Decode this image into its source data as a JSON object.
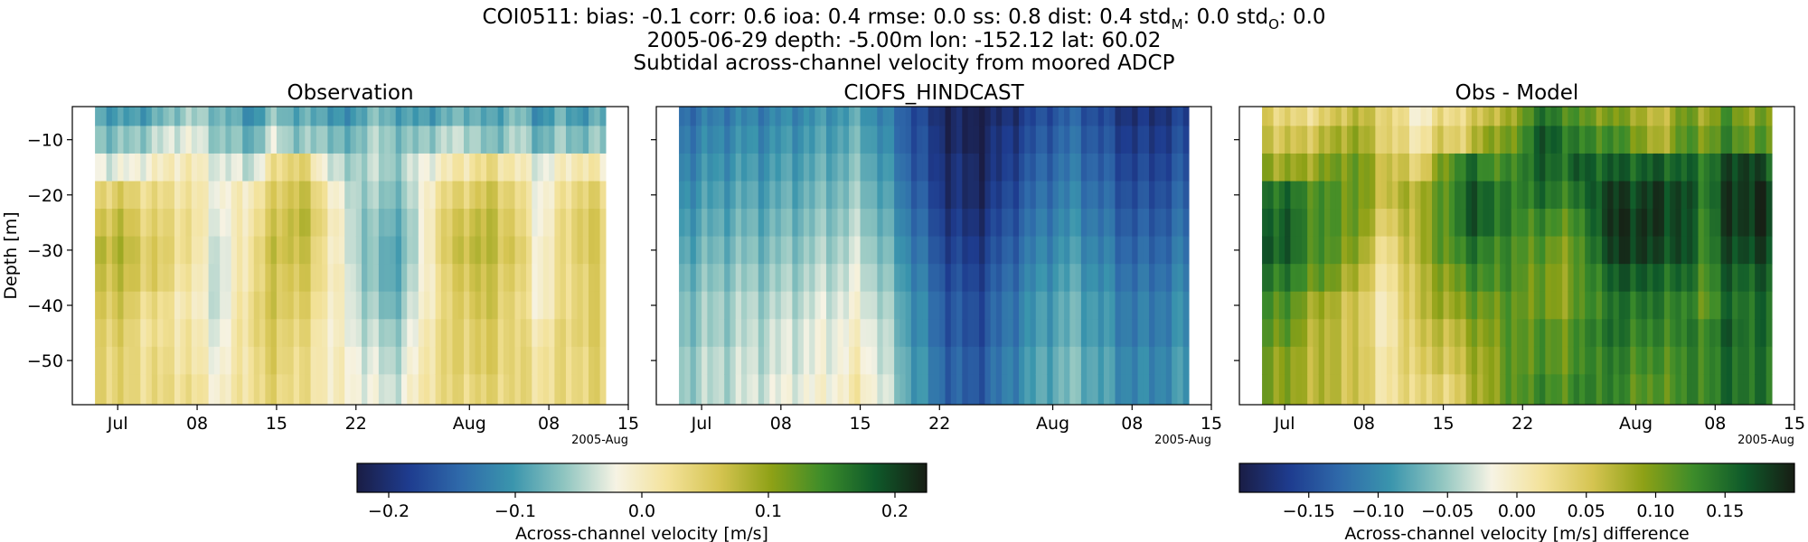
{
  "suptitle": {
    "line1_prefix": "COI0511: bias: -0.1  corr: 0.6  ioa: 0.4  rmse: 0.0  ss: 0.8  dist: 0.4  std",
    "line1_sub_m": "M",
    "line1_mid": ": 0.0  std",
    "line1_sub_o": "O",
    "line1_end": ": 0.0",
    "line2": "2005-06-29 depth: -5.00m lon: -152.12 lat: 60.02",
    "line3": "Subtidal across-channel velocity from moored ADCP"
  },
  "colors": {
    "colormap": [
      "#1a1d45",
      "#1e3c8f",
      "#2f6aaa",
      "#3a95ad",
      "#8fc5c0",
      "#f6f3e4",
      "#f3e29a",
      "#d5c451",
      "#8ea116",
      "#3c8c2a",
      "#0f5a2a",
      "#171d14"
    ],
    "axis": "#000000",
    "background": "#ffffff"
  },
  "chart_data": [
    {
      "type": "heatmap",
      "title": "Observation",
      "xlabel": "",
      "ylabel": "Depth [m]",
      "x_range": [
        "2005-06-29",
        "2005-08-13"
      ],
      "xlim": [
        "2005-06-27",
        "2005-08-15"
      ],
      "ylim": [
        -58,
        -4
      ],
      "y_ticks": [
        -10,
        -20,
        -30,
        -40,
        -50
      ],
      "x_ticks": [
        "Jul",
        "08",
        "15",
        "22",
        "Aug",
        "08",
        "15"
      ],
      "x_tick_dates": [
        "2005-07-01",
        "2005-07-08",
        "2005-07-15",
        "2005-07-22",
        "2005-08-01",
        "2005-08-08",
        "2005-08-15"
      ],
      "x_offset_label": "2005-Aug",
      "value_range": [
        -0.225,
        0.225
      ],
      "profile_days": [
        "2005-06-29",
        "2005-07-01",
        "2005-07-04",
        "2005-07-07",
        "2005-07-10",
        "2005-07-13",
        "2005-07-15",
        "2005-07-17",
        "2005-07-19",
        "2005-07-21",
        "2005-07-23",
        "2005-07-25",
        "2005-07-27",
        "2005-07-29",
        "2005-08-01",
        "2005-08-03",
        "2005-08-05",
        "2005-08-07",
        "2005-08-09",
        "2005-08-11",
        "2005-08-13"
      ],
      "profile_depths": [
        -5,
        -10,
        -15,
        -20,
        -25,
        -30,
        -35,
        -40,
        -45,
        -50,
        -55
      ],
      "values": [
        [
          -0.08,
          -0.1,
          -0.09,
          -0.05,
          -0.07,
          -0.11,
          -0.06,
          -0.09,
          -0.08,
          -0.12,
          -0.07,
          -0.08,
          -0.1,
          -0.09,
          -0.07,
          -0.1,
          -0.06,
          -0.11,
          -0.08,
          -0.1,
          -0.08
        ],
        [
          -0.06,
          -0.07,
          -0.05,
          -0.02,
          -0.06,
          -0.08,
          -0.03,
          -0.07,
          -0.05,
          -0.09,
          -0.05,
          -0.06,
          -0.07,
          -0.05,
          -0.04,
          -0.08,
          -0.04,
          -0.08,
          -0.06,
          -0.07,
          -0.06
        ],
        [
          -0.02,
          -0.03,
          -0.01,
          0.01,
          -0.03,
          -0.04,
          0.03,
          0.05,
          -0.01,
          -0.06,
          -0.04,
          -0.06,
          -0.04,
          -0.01,
          0.02,
          0.03,
          0.01,
          -0.03,
          -0.01,
          0.02,
          -0.01
        ],
        [
          0.04,
          0.05,
          0.03,
          0.02,
          -0.02,
          0.01,
          0.05,
          0.07,
          0.03,
          -0.04,
          -0.05,
          -0.07,
          -0.05,
          0.02,
          0.05,
          0.06,
          0.04,
          -0.02,
          0.01,
          0.05,
          0.03
        ],
        [
          0.06,
          0.07,
          0.04,
          0.03,
          -0.03,
          0.02,
          0.06,
          0.08,
          0.04,
          -0.03,
          -0.06,
          -0.08,
          -0.06,
          0.03,
          0.07,
          0.07,
          0.05,
          -0.02,
          0.02,
          0.06,
          0.04
        ],
        [
          0.08,
          0.08,
          0.05,
          0.03,
          -0.04,
          0.03,
          0.07,
          0.07,
          0.03,
          -0.03,
          -0.06,
          -0.09,
          -0.06,
          0.03,
          0.08,
          0.07,
          0.06,
          -0.01,
          0.02,
          0.06,
          0.04
        ],
        [
          0.07,
          0.07,
          0.05,
          0.02,
          -0.04,
          0.03,
          0.06,
          0.06,
          0.03,
          -0.02,
          -0.06,
          -0.09,
          -0.05,
          0.02,
          0.07,
          0.06,
          0.05,
          -0.01,
          0.02,
          0.05,
          0.04
        ],
        [
          0.06,
          0.06,
          0.03,
          0.01,
          -0.04,
          0.04,
          0.06,
          0.05,
          0.02,
          -0.02,
          -0.05,
          -0.08,
          -0.04,
          0.02,
          0.06,
          0.06,
          0.04,
          -0.01,
          0.02,
          0.05,
          0.04
        ],
        [
          0.05,
          0.05,
          0.02,
          0.02,
          -0.03,
          0.04,
          0.05,
          0.04,
          0.01,
          -0.02,
          -0.04,
          -0.06,
          -0.03,
          0.03,
          0.05,
          0.05,
          0.04,
          0.01,
          0.03,
          0.05,
          0.04
        ],
        [
          0.05,
          0.04,
          0.03,
          0.02,
          -0.02,
          0.03,
          0.05,
          0.03,
          0.01,
          -0.01,
          -0.03,
          -0.05,
          -0.02,
          0.03,
          0.05,
          0.05,
          0.04,
          0.02,
          0.03,
          0.04,
          0.04
        ],
        [
          0.05,
          0.04,
          0.03,
          0.03,
          -0.01,
          0.03,
          0.04,
          0.03,
          0.01,
          -0.01,
          -0.02,
          -0.04,
          -0.01,
          0.03,
          0.04,
          0.04,
          0.04,
          0.02,
          0.03,
          0.04,
          0.04
        ]
      ]
    },
    {
      "type": "heatmap",
      "title": "CIOFS_HINDCAST",
      "xlabel": "",
      "ylabel": "",
      "x_range": [
        "2005-06-29",
        "2005-08-13"
      ],
      "xlim": [
        "2005-06-27",
        "2005-08-15"
      ],
      "ylim": [
        -58,
        -4
      ],
      "y_ticks": [
        -10,
        -20,
        -30,
        -40,
        -50
      ],
      "x_ticks": [
        "Jul",
        "08",
        "15",
        "22",
        "Aug",
        "08",
        "15"
      ],
      "x_tick_dates": [
        "2005-07-01",
        "2005-07-08",
        "2005-07-15",
        "2005-07-22",
        "2005-08-01",
        "2005-08-08",
        "2005-08-15"
      ],
      "x_offset_label": "2005-Aug",
      "value_range": [
        -0.225,
        0.225
      ],
      "profile_days": [
        "2005-06-29",
        "2005-07-01",
        "2005-07-04",
        "2005-07-07",
        "2005-07-10",
        "2005-07-13",
        "2005-07-15",
        "2005-07-17",
        "2005-07-19",
        "2005-07-21",
        "2005-07-23",
        "2005-07-25",
        "2005-07-27",
        "2005-07-29",
        "2005-08-01",
        "2005-08-03",
        "2005-08-05",
        "2005-08-07",
        "2005-08-09",
        "2005-08-11",
        "2005-08-13"
      ],
      "profile_depths": [
        -5,
        -10,
        -15,
        -20,
        -25,
        -30,
        -35,
        -40,
        -45,
        -50,
        -55
      ],
      "values": [
        [
          -0.14,
          -0.13,
          -0.12,
          -0.12,
          -0.11,
          -0.1,
          -0.09,
          -0.12,
          -0.15,
          -0.19,
          -0.21,
          -0.22,
          -0.21,
          -0.19,
          -0.16,
          -0.15,
          -0.17,
          -0.19,
          -0.2,
          -0.19,
          -0.18
        ],
        [
          -0.13,
          -0.12,
          -0.11,
          -0.11,
          -0.1,
          -0.09,
          -0.08,
          -0.11,
          -0.15,
          -0.18,
          -0.21,
          -0.22,
          -0.2,
          -0.18,
          -0.15,
          -0.14,
          -0.16,
          -0.18,
          -0.19,
          -0.18,
          -0.17
        ],
        [
          -0.12,
          -0.11,
          -0.1,
          -0.1,
          -0.09,
          -0.08,
          -0.07,
          -0.1,
          -0.14,
          -0.18,
          -0.2,
          -0.21,
          -0.2,
          -0.17,
          -0.14,
          -0.13,
          -0.15,
          -0.17,
          -0.18,
          -0.17,
          -0.16
        ],
        [
          -0.11,
          -0.1,
          -0.09,
          -0.09,
          -0.08,
          -0.07,
          -0.06,
          -0.09,
          -0.13,
          -0.17,
          -0.2,
          -0.21,
          -0.19,
          -0.16,
          -0.13,
          -0.12,
          -0.14,
          -0.16,
          -0.17,
          -0.16,
          -0.15
        ],
        [
          -0.1,
          -0.09,
          -0.08,
          -0.08,
          -0.07,
          -0.06,
          -0.05,
          -0.08,
          -0.12,
          -0.16,
          -0.19,
          -0.2,
          -0.18,
          -0.15,
          -0.12,
          -0.11,
          -0.13,
          -0.15,
          -0.16,
          -0.15,
          -0.14
        ],
        [
          -0.09,
          -0.08,
          -0.07,
          -0.07,
          -0.06,
          -0.05,
          -0.04,
          -0.07,
          -0.11,
          -0.15,
          -0.18,
          -0.19,
          -0.17,
          -0.14,
          -0.11,
          -0.1,
          -0.12,
          -0.14,
          -0.15,
          -0.14,
          -0.13
        ],
        [
          -0.08,
          -0.07,
          -0.06,
          -0.06,
          -0.05,
          -0.04,
          -0.03,
          -0.06,
          -0.1,
          -0.14,
          -0.17,
          -0.18,
          -0.16,
          -0.13,
          -0.1,
          -0.09,
          -0.11,
          -0.13,
          -0.14,
          -0.13,
          -0.12
        ],
        [
          -0.07,
          -0.06,
          -0.05,
          -0.05,
          -0.04,
          -0.03,
          -0.02,
          -0.05,
          -0.09,
          -0.13,
          -0.16,
          -0.17,
          -0.15,
          -0.12,
          -0.09,
          -0.08,
          -0.1,
          -0.12,
          -0.13,
          -0.12,
          -0.11
        ],
        [
          -0.07,
          -0.06,
          -0.05,
          -0.04,
          -0.03,
          -0.02,
          -0.01,
          -0.04,
          -0.09,
          -0.13,
          -0.16,
          -0.17,
          -0.15,
          -0.12,
          -0.09,
          -0.08,
          -0.1,
          -0.12,
          -0.13,
          -0.12,
          -0.11
        ],
        [
          -0.06,
          -0.05,
          -0.04,
          -0.04,
          -0.03,
          -0.02,
          0.0,
          -0.04,
          -0.08,
          -0.12,
          -0.15,
          -0.16,
          -0.14,
          -0.11,
          -0.08,
          -0.07,
          -0.09,
          -0.11,
          -0.12,
          -0.11,
          -0.1
        ],
        [
          -0.06,
          -0.05,
          -0.04,
          -0.03,
          -0.02,
          -0.01,
          0.01,
          -0.03,
          -0.08,
          -0.12,
          -0.15,
          -0.16,
          -0.14,
          -0.11,
          -0.08,
          -0.07,
          -0.09,
          -0.11,
          -0.12,
          -0.11,
          -0.1
        ]
      ]
    },
    {
      "type": "heatmap",
      "title": "Obs - Model",
      "xlabel": "",
      "ylabel": "",
      "x_range": [
        "2005-06-29",
        "2005-08-13"
      ],
      "xlim": [
        "2005-06-27",
        "2005-08-15"
      ],
      "ylim": [
        -58,
        -4
      ],
      "y_ticks": [
        -10,
        -20,
        -30,
        -40,
        -50
      ],
      "x_ticks": [
        "Jul",
        "08",
        "15",
        "22",
        "Aug",
        "08",
        "15"
      ],
      "x_tick_dates": [
        "2005-07-01",
        "2005-07-08",
        "2005-07-15",
        "2005-07-22",
        "2005-08-01",
        "2005-08-08",
        "2005-08-15"
      ],
      "x_offset_label": "2005-Aug",
      "value_range": [
        -0.2,
        0.2
      ],
      "profile_days": [
        "2005-06-29",
        "2005-07-01",
        "2005-07-04",
        "2005-07-07",
        "2005-07-10",
        "2005-07-13",
        "2005-07-15",
        "2005-07-17",
        "2005-07-19",
        "2005-07-21",
        "2005-07-23",
        "2005-07-25",
        "2005-07-27",
        "2005-07-29",
        "2005-08-01",
        "2005-08-03",
        "2005-08-05",
        "2005-08-07",
        "2005-08-09",
        "2005-08-11",
        "2005-08-13"
      ],
      "profile_depths": [
        -5,
        -10,
        -15,
        -20,
        -25,
        -30,
        -35,
        -40,
        -45,
        -50,
        -55
      ],
      "values": [
        [
          0.06,
          0.03,
          0.03,
          0.07,
          0.04,
          -0.01,
          0.03,
          0.03,
          0.07,
          0.07,
          0.14,
          0.14,
          0.11,
          0.1,
          0.09,
          0.05,
          0.11,
          0.08,
          0.12,
          0.09,
          0.1
        ],
        [
          0.07,
          0.05,
          0.06,
          0.09,
          0.04,
          0.01,
          0.05,
          0.04,
          0.1,
          0.09,
          0.16,
          0.16,
          0.13,
          0.13,
          0.11,
          0.06,
          0.12,
          0.1,
          0.13,
          0.11,
          0.11
        ],
        [
          0.1,
          0.08,
          0.09,
          0.11,
          0.06,
          0.04,
          0.1,
          0.15,
          0.13,
          0.12,
          0.16,
          0.15,
          0.16,
          0.16,
          0.16,
          0.16,
          0.16,
          0.14,
          0.17,
          0.19,
          0.15
        ],
        [
          0.15,
          0.15,
          0.12,
          0.11,
          0.06,
          0.08,
          0.11,
          0.16,
          0.16,
          0.13,
          0.15,
          0.14,
          0.14,
          0.18,
          0.18,
          0.18,
          0.18,
          0.14,
          0.18,
          0.19,
          0.18
        ],
        [
          0.16,
          0.16,
          0.12,
          0.11,
          0.04,
          0.08,
          0.11,
          0.16,
          0.16,
          0.13,
          0.13,
          0.12,
          0.12,
          0.18,
          0.19,
          0.18,
          0.18,
          0.13,
          0.18,
          0.19,
          0.18
        ],
        [
          0.17,
          0.16,
          0.12,
          0.1,
          0.02,
          0.08,
          0.11,
          0.14,
          0.14,
          0.12,
          0.12,
          0.1,
          0.11,
          0.17,
          0.19,
          0.17,
          0.18,
          0.13,
          0.17,
          0.18,
          0.17
        ],
        [
          0.15,
          0.14,
          0.11,
          0.08,
          0.01,
          0.07,
          0.09,
          0.12,
          0.13,
          0.12,
          0.11,
          0.09,
          0.11,
          0.15,
          0.17,
          0.15,
          0.16,
          0.12,
          0.16,
          0.16,
          0.16
        ],
        [
          0.13,
          0.12,
          0.08,
          0.06,
          0.0,
          0.07,
          0.08,
          0.1,
          0.11,
          0.11,
          0.11,
          0.09,
          0.11,
          0.14,
          0.15,
          0.14,
          0.14,
          0.11,
          0.15,
          0.15,
          0.15
        ],
        [
          0.12,
          0.11,
          0.07,
          0.06,
          0.0,
          0.06,
          0.06,
          0.08,
          0.1,
          0.11,
          0.12,
          0.11,
          0.12,
          0.15,
          0.14,
          0.13,
          0.14,
          0.13,
          0.16,
          0.15,
          0.15
        ],
        [
          0.11,
          0.09,
          0.07,
          0.06,
          0.01,
          0.05,
          0.05,
          0.07,
          0.09,
          0.11,
          0.12,
          0.11,
          0.12,
          0.14,
          0.13,
          0.12,
          0.13,
          0.13,
          0.15,
          0.15,
          0.14
        ],
        [
          0.11,
          0.09,
          0.07,
          0.06,
          0.01,
          0.04,
          0.03,
          0.06,
          0.09,
          0.11,
          0.13,
          0.12,
          0.13,
          0.14,
          0.12,
          0.11,
          0.13,
          0.13,
          0.15,
          0.15,
          0.14
        ]
      ]
    }
  ],
  "colorbars": [
    {
      "label": "Across-channel velocity [m/s]",
      "min": -0.225,
      "max": 0.225,
      "ticks": [
        -0.2,
        -0.1,
        0.0,
        0.1,
        0.2
      ],
      "tick_labels": [
        "−0.2",
        "−0.1",
        "0.0",
        "0.1",
        "0.2"
      ]
    },
    {
      "label": "Across-channel velocity [m/s] difference",
      "min": -0.2,
      "max": 0.2,
      "ticks": [
        -0.15,
        -0.1,
        -0.05,
        0.0,
        0.05,
        0.1,
        0.15
      ],
      "tick_labels": [
        "−0.15",
        "−0.10",
        "−0.05",
        "0.00",
        "0.05",
        "0.10",
        "0.15"
      ]
    }
  ]
}
